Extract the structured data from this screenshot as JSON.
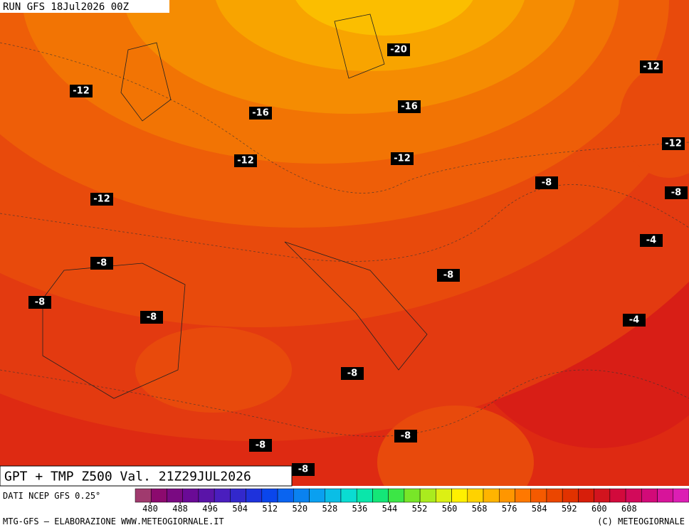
{
  "header": {
    "run": "RUN GFS 18Jul2026 00Z"
  },
  "map": {
    "title": "GPT + TMP Z500 Val. 21Z29JUL2026",
    "labels": [
      -12,
      -16,
      -20,
      -16,
      -12,
      -12,
      -12,
      -12,
      -12,
      -8,
      -8,
      -4,
      -8,
      -8,
      -8,
      -8,
      -4,
      -8,
      -8,
      -8,
      -8
    ]
  },
  "legend": {
    "source": "DATI NCEP GFS 0.25°",
    "ticks": [
      480,
      488,
      496,
      504,
      512,
      520,
      528,
      536,
      544,
      552,
      560,
      568,
      576,
      584,
      592,
      600,
      608
    ],
    "colors": [
      "#a03a6e",
      "#8c0a6e",
      "#7a0a82",
      "#6a0a96",
      "#5a14a8",
      "#4a1ebe",
      "#3228cc",
      "#1e32dc",
      "#0a46ec",
      "#0a64f0",
      "#0a82f0",
      "#0aa0f0",
      "#0abee6",
      "#0adcd2",
      "#0ae6aa",
      "#14e678",
      "#3ce646",
      "#78e628",
      "#aaeb1e",
      "#dcf014",
      "#fff000",
      "#ffd200",
      "#ffb400",
      "#ff9600",
      "#ff7800",
      "#f55a00",
      "#eb4600",
      "#e13200",
      "#d71e0a",
      "#d2141e",
      "#d20a3c",
      "#d20a5a",
      "#d20a78",
      "#d7149a",
      "#dc1eb4"
    ]
  },
  "footer": {
    "left": "MTG-GFS — ELABORAZIONE WWW.METEOGIORNALE.IT",
    "right": "(C) METEOGIORNALE"
  }
}
